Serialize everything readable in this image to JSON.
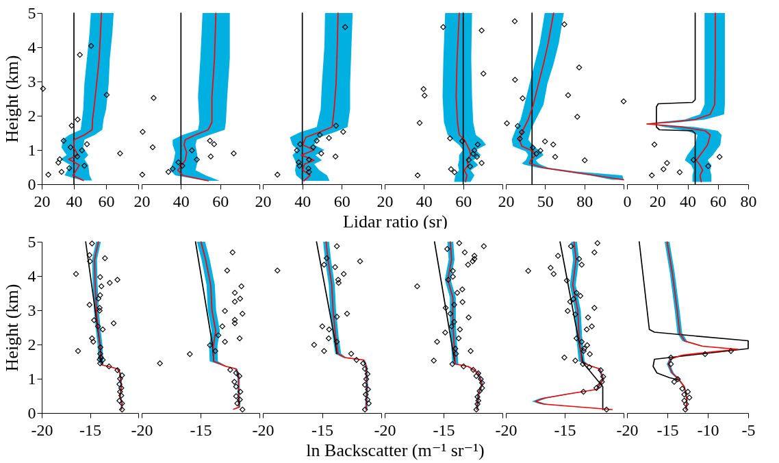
{
  "chart_data": [
    {
      "type": "line",
      "orientation": "horizontal",
      "ylabel": "Height (km)",
      "xlim": [
        20,
        80
      ],
      "ylim": [
        0,
        5
      ],
      "xticks": [
        20,
        40,
        60,
        {
          "value": 80,
          "label": null
        }
      ],
      "yticks": [
        0,
        1,
        2,
        3,
        4,
        5
      ],
      "series": [
        {
          "color": "#000000",
          "x": [
            0,
            5
          ],
          "values": [
            40,
            40
          ]
        },
        {
          "color": "#ff0000",
          "x": [
            0.11,
            0.26,
            0.56,
            0.73,
            0.85,
            1.07,
            1.3,
            1.44,
            1.59,
            1.89,
            2.19,
            2.93,
            3.67,
            4.41,
            5.0
          ],
          "values": [
            45.8,
            39.4,
            43.4,
            36.7,
            42.6,
            39.8,
            40.2,
            46.5,
            51.3,
            51.6,
            52.4,
            54.1,
            55.7,
            56.5,
            57.1
          ],
          "lower": [
            45,
            34.2,
            37.9,
            31.5,
            35.5,
            32.3,
            33.1,
            37,
            44.2,
            45,
            45.8,
            46.5,
            48.1,
            49.7,
            50.5
          ],
          "upper": [
            51.3,
            49.7,
            48.9,
            46.5,
            48.9,
            45.8,
            46.5,
            52.9,
            57.6,
            58.4,
            60,
            61.6,
            62.3,
            63.9,
            64.7
          ]
        },
        {
          "type": "scatter",
          "marker": "diamond",
          "color": "#000000",
          "x": [
            2.79,
            0.28,
            0.36,
            0.63,
            0.73,
            0.47,
            1.27,
            1.08,
            0.81,
            0.99,
            0.54,
            1.17,
            1.71,
            1.89,
            3.78,
            4.04,
            2.61,
            0.9
          ],
          "values": [
            20.8,
            24.1,
            32.3,
            30.3,
            31.2,
            37.1,
            33.6,
            37.9,
            42.1,
            45.0,
            46.5,
            48.1,
            38.6,
            42.3,
            43.7,
            50.7,
            60.4,
            68.7
          ]
        }
      ]
    },
    {
      "type": "line",
      "orientation": "horizontal",
      "tick_labels": "x",
      "xlim": [
        20,
        80
      ],
      "ylim": [
        0,
        5
      ],
      "xticks": [
        20,
        40,
        60,
        {
          "value": 80,
          "label": null
        }
      ],
      "yticks": [
        0,
        1,
        2,
        3,
        4,
        5
      ],
      "series": [
        {
          "color": "#000000",
          "x": [
            0,
            5
          ],
          "values": [
            40,
            40
          ]
        },
        {
          "color": "#ff0000",
          "x": [
            0.1,
            0.26,
            0.41,
            0.7,
            0.93,
            1.15,
            1.3,
            1.44,
            1.59,
            1.81,
            2.56,
            3.67,
            5.0
          ],
          "values": [
            53.9,
            40.9,
            38.4,
            42.2,
            42.9,
            41.6,
            42.2,
            47.4,
            53.9,
            55.8,
            55.8,
            57.1,
            57.8
          ],
          "lower": [
            52.6,
            37.1,
            34.5,
            36.4,
            37.1,
            35.8,
            35.8,
            40.9,
            48.7,
            49.4,
            48.7,
            49.9,
            51
          ],
          "upper": [
            59.7,
            52.6,
            47.4,
            48.7,
            48.1,
            47.4,
            48.1,
            54.5,
            62.3,
            62.9,
            63.6,
            64.9,
            64.9
          ]
        },
        {
          "type": "scatter",
          "marker": "diamond",
          "color": "#000000",
          "x": [
            1.53,
            0.28,
            2.52,
            1.08,
            0.36,
            0.45,
            0.64,
            0.54,
            0.99,
            0.72,
            1.27,
            1.17,
            0.81,
            0.9
          ],
          "values": [
            20.5,
            20.3,
            26.1,
            25.6,
            33.6,
            35.8,
            38.7,
            40.7,
            45.6,
            48.1,
            54.8,
            56.9,
            55.2,
            66.9
          ]
        }
      ]
    },
    {
      "type": "line",
      "orientation": "horizontal",
      "tick_labels": "x",
      "xlabel": "Lidar ratio (sr)",
      "xlim": [
        20,
        80
      ],
      "ylim": [
        0,
        5
      ],
      "xticks": [
        20,
        40,
        60,
        {
          "value": 80,
          "label": null
        }
      ],
      "yticks": [
        0,
        1,
        2,
        3,
        4,
        5
      ],
      "series": [
        {
          "color": "#000000",
          "x": [
            0,
            5
          ],
          "values": [
            40,
            40
          ]
        },
        {
          "color": "#ff0000",
          "x": [
            0.1,
            0.26,
            0.41,
            0.59,
            0.7,
            0.85,
            1.0,
            1.15,
            1.37,
            1.52,
            1.67,
            2.19,
            2.93,
            4.04,
            5.0
          ],
          "values": [
            40.8,
            44,
            40.2,
            41.1,
            46,
            39.5,
            46,
            40.2,
            41.8,
            48.6,
            55.1,
            56.1,
            57.1,
            57.7,
            58.1
          ],
          "lower": [
            40.2,
            36.9,
            36.3,
            36.9,
            36.3,
            35,
            37.6,
            35,
            33.7,
            38.9,
            47.3,
            49.3,
            49.9,
            51.2,
            51.5
          ],
          "upper": [
            53.8,
            52.5,
            48.6,
            46,
            49.9,
            46.7,
            51.2,
            46,
            48.6,
            56.4,
            62.9,
            64.2,
            64.2,
            64.9,
            65.5
          ]
        },
        {
          "type": "scatter",
          "marker": "diamond",
          "color": "#000000",
          "x": [
            0.28,
            0.99,
            1.17,
            0.64,
            0.54,
            0.46,
            0.36,
            0.72,
            1.08,
            1.27,
            1.44,
            0.9,
            1.35,
            0.81,
            1.71,
            1.53,
            4.59
          ],
          "values": [
            27.4,
            37.3,
            38.9,
            38.2,
            38.6,
            43.1,
            43.4,
            43.4,
            45.5,
            47.3,
            48.9,
            49.6,
            53.5,
            56.8,
            57.1,
            60.7,
            61.7
          ]
        }
      ]
    },
    {
      "type": "line",
      "orientation": "horizontal",
      "tick_labels": "x",
      "xlim": [
        20,
        80
      ],
      "ylim": [
        0,
        5
      ],
      "xticks": [
        20,
        40,
        60,
        {
          "value": 80,
          "label": null
        }
      ],
      "yticks": [
        0,
        1,
        2,
        3,
        4,
        5
      ],
      "series": [
        {
          "color": "#000000",
          "x": [
            0,
            5
          ],
          "values": [
            60,
            60
          ]
        },
        {
          "color": "#ff0000",
          "x": [
            0.07,
            0.26,
            0.41,
            0.56,
            0.7,
            0.85,
            1.0,
            1.15,
            1.3,
            1.44,
            1.81,
            2.56,
            3.67,
            5.0
          ],
          "values": [
            61.2,
            61.9,
            60.6,
            62.5,
            61.9,
            63.8,
            63.2,
            61.9,
            60.6,
            58,
            57.1,
            56.4,
            56.9,
            58
          ],
          "lower": [
            55.4,
            56,
            57.9,
            57.3,
            57.9,
            57.9,
            59.9,
            57.9,
            54.7,
            52.1,
            50.2,
            49.5,
            49.9,
            50.8
          ],
          "upper": [
            63.8,
            65.7,
            63.8,
            67.7,
            65.1,
            69,
            66.4,
            71.6,
            69.6,
            66.4,
            65.1,
            64.5,
            64.1,
            64.5
          ]
        },
        {
          "type": "scatter",
          "marker": "diamond",
          "color": "#000000",
          "x": [
            0.26,
            0.44,
            0.35,
            0.52,
            0.71,
            0.62,
            0.8,
            0.89,
            0.99,
            1.16,
            1.26,
            1.34,
            1.79,
            2.59,
            2.78,
            3.23,
            4.59,
            4.49
          ],
          "values": [
            36.8,
            53.8,
            55.6,
            63.5,
            62.9,
            69.4,
            67,
            65.1,
            65.7,
            67.4,
            59.5,
            53.3,
            37.8,
            40.3,
            39.8,
            70.3,
            49.8,
            69.4
          ]
        }
      ]
    },
    {
      "type": "line",
      "orientation": "horizontal",
      "tick_labels": "x",
      "xlim": [
        20,
        110
      ],
      "ylim": [
        0,
        5
      ],
      "xticks": [
        20,
        50,
        80,
        {
          "value": 110,
          "label": null
        }
      ],
      "yticks": [
        0,
        1,
        2,
        3,
        4,
        5
      ],
      "series": [
        {
          "color": "#000000",
          "x": [
            0,
            5
          ],
          "values": [
            40,
            40
          ]
        },
        {
          "color": "#ff0000",
          "x": [
            0.13,
            0.26,
            0.37,
            0.48,
            0.57,
            0.61,
            0.7,
            0.85,
            0.96,
            1.11,
            1.3,
            1.59,
            1.89,
            2.33,
            2.93,
            3.52,
            4.11,
            5.0
          ],
          "values": [
            110,
            87.7,
            68.2,
            48.8,
            41,
            38.1,
            39,
            42.6,
            41,
            32.2,
            30.3,
            33.2,
            37.1,
            41,
            44.9,
            48.8,
            52.3,
            56.5
          ],
          "lower": [
            101.3,
            83.8,
            64.3,
            44.9,
            34.2,
            32.2,
            35.2,
            37.1,
            35.2,
            25.4,
            24.5,
            27.4,
            31.3,
            34.2,
            38.1,
            42,
            45.9,
            49.7
          ],
          "upper": [
            110,
            109,
            74,
            52.7,
            46.8,
            44.9,
            42.9,
            48.8,
            46.8,
            41,
            37.1,
            39.1,
            42.9,
            48.8,
            51.7,
            56.5,
            60.4,
            64.3
          ]
        },
        {
          "type": "scatter",
          "marker": "diamond",
          "color": "#000000",
          "x": [
            1.78,
            4.76,
            3.05,
            2.51,
            1.7,
            1.52,
            1.33,
            1.07,
            0.89,
            0.98,
            1.25,
            1.16,
            0.8,
            0.7,
            1.97,
            2.6,
            3.41,
            4.67,
            2.42
          ],
          "values": [
            20.8,
            26.8,
            27,
            32.8,
            29.1,
            32.2,
            30.7,
            40.6,
            43.3,
            46.4,
            49.9,
            56.2,
            57.7,
            80.3,
            74.6,
            67.6,
            76,
            64.7,
            110
          ]
        }
      ]
    },
    {
      "type": "line",
      "orientation": "horizontal",
      "tick_labels": "x",
      "xlim": [
        0,
        80
      ],
      "ylim": [
        0,
        5
      ],
      "xticks": [
        0,
        20,
        40,
        60,
        80
      ],
      "yticks": [
        0,
        1,
        2,
        3,
        4,
        5
      ],
      "series": [
        {
          "color": "#000000",
          "x": [
            5,
            2.47,
            2.39,
            2.35,
            2.26,
            1.67,
            1.59,
            1.56,
            1.48,
            0
          ],
          "values": [
            45,
            45,
            43.2,
            20.6,
            19.4,
            19.4,
            21.4,
            43.2,
            45,
            45
          ]
        },
        {
          "color": "#ff0000",
          "x": [
            0.07,
            0.26,
            0.41,
            0.56,
            0.7,
            0.85,
            1.15,
            1.44,
            1.56,
            1.67,
            1.73,
            1.76,
            1.81,
            1.89,
            2.04,
            2.33,
            3.67,
            5.0
          ],
          "values": [
            49,
            48.2,
            49.9,
            48.2,
            45.7,
            48.2,
            53.2,
            54.9,
            51.6,
            36.5,
            21.4,
            13.1,
            28.1,
            44.9,
            54.9,
            57.9,
            58.3,
            58.3
          ],
          "lower": [
            43.2,
            43.2,
            44,
            42.4,
            38.2,
            39.8,
            44.9,
            46.5,
            39.8,
            24.8,
            18.9,
            12.2,
            19.8,
            38.2,
            48.2,
            51.2,
            51.2,
            51.2
          ],
          "upper": [
            55.7,
            55.7,
            54.9,
            55.7,
            53.2,
            56.6,
            61.6,
            62.4,
            59.9,
            44.9,
            26.4,
            14.7,
            34.8,
            51.6,
            64.1,
            64.6,
            64.6,
            64.6
          ]
        },
        {
          "type": "scatter",
          "marker": "diamond",
          "color": "#000000",
          "x": [
            0.26,
            0.44,
            0.62,
            0.35,
            1.16,
            0.71,
            0.53,
            0.8
          ],
          "values": [
            16.4,
            24.1,
            26.4,
            34.8,
            18.1,
            43.9,
            53.6,
            61.1
          ]
        }
      ]
    },
    {
      "type": "line",
      "orientation": "horizontal",
      "ylabel": "Height (km)",
      "xlim": [
        -20,
        -10
      ],
      "ylim": [
        0,
        5
      ],
      "xticks": [
        -20,
        -15,
        {
          "value": -10,
          "label": null
        }
      ],
      "yticks": [
        0,
        1,
        2,
        3,
        4,
        5
      ],
      "series": [
        {
          "color": "#000000",
          "x": [
            1.51,
            1.95,
            5.0
          ],
          "values": [
            -13.87,
            -13.95,
            -15.45
          ]
        },
        {
          "color": "#ff0000",
          "x": [
            0.1,
            0.28,
            0.47,
            0.77,
            1.17,
            1.29,
            1.36,
            1.4,
            1.51,
            1.95,
            2.4,
            2.99,
            3.37,
            3.74,
            4.48,
            5.0
          ],
          "values": [
            -11.76,
            -11.68,
            -11.89,
            -11.76,
            -11.89,
            -12.16,
            -13.08,
            -13.74,
            -13.87,
            -13.95,
            -14.13,
            -14.34,
            -14.39,
            -14.47,
            -14.53,
            -14.13
          ],
          "lower": [
            -11.86,
            -11.78,
            -11.99,
            -11.86,
            -11.99,
            -12.26,
            -13.18,
            -13.89,
            -14.12,
            -14.2,
            -14.38,
            -14.59,
            -14.64,
            -14.72,
            -14.78,
            -14.38
          ],
          "upper": [
            -11.66,
            -11.58,
            -11.79,
            -11.66,
            -11.79,
            -12.06,
            -12.98,
            -13.59,
            -13.62,
            -13.7,
            -13.88,
            -14.09,
            -14.14,
            -14.22,
            -14.28,
            -13.88
          ]
        },
        {
          "type": "scatter",
          "marker": "diamond",
          "color": "#000000",
          "x": [
            4.95,
            4.61,
            4.43,
            4.52,
            4.06,
            3.97,
            3.7,
            3.8,
            3.89,
            3.44,
            3.34,
            3.16,
            3.07,
            2.99,
            2.71,
            2.53,
            2.44,
            2.62,
            2.18,
            2.08,
            1.81,
            1.92,
            1.73,
            1.62,
            1.56,
            1.55,
            1.45,
            1.36,
            1.25,
            1.1,
            1.0,
            0.84,
            0.73,
            0.62,
            0.51,
            0.36,
            0.28,
            0.1
          ],
          "values": [
            -14.79,
            -15.05,
            -15.0,
            -13.45,
            -16.45,
            -13.95,
            -13.82,
            -12.95,
            -12.16,
            -13.95,
            -14.13,
            -15.05,
            -14.0,
            -14.0,
            -14.58,
            -14.18,
            -13.68,
            -12.55,
            -14.79,
            -14.66,
            -16.24,
            -13.92,
            -13.95,
            -13.87,
            -14.0,
            -13.68,
            -13.95,
            -13.03,
            -12.16,
            -11.68,
            -11.89,
            -11.95,
            -11.76,
            -11.89,
            -11.76,
            -11.95,
            -11.68,
            -11.68
          ]
        }
      ]
    },
    {
      "type": "line",
      "orientation": "horizontal",
      "tick_labels": "x",
      "xlim": [
        -20,
        -10
      ],
      "ylim": [
        0,
        5
      ],
      "xticks": [
        -20,
        -15,
        {
          "value": -10,
          "label": null
        }
      ],
      "yticks": [
        0,
        1,
        2,
        3,
        4,
        5
      ],
      "series": [
        {
          "color": "#000000",
          "x": [
            1.51,
            1.95,
            5.0
          ],
          "values": [
            -13.88,
            -13.97,
            -15.43
          ]
        },
        {
          "color": "#ff0000",
          "x": [
            0.11,
            0.17,
            0.62,
            1.06,
            1.29,
            1.36,
            1.51,
            1.95,
            2.4,
            2.99,
            3.74,
            4.48,
            5.0
          ],
          "values": [
            -12.2,
            -11.72,
            -11.77,
            -11.77,
            -11.98,
            -12.84,
            -13.88,
            -13.92,
            -13.71,
            -14.03,
            -14.14,
            -14.57,
            -14.96
          ],
          "lower": [
            -12.3,
            -11.82,
            -11.87,
            -11.87,
            -12.08,
            -12.94,
            -14.23,
            -14.27,
            -14.06,
            -14.38,
            -14.49,
            -14.92,
            -15.31
          ],
          "upper": [
            -12.1,
            -11.62,
            -11.67,
            -11.67,
            -11.88,
            -12.74,
            -13.53,
            -13.57,
            -13.36,
            -13.68,
            -13.79,
            -14.22,
            -14.61
          ]
        },
        {
          "type": "scatter",
          "marker": "diamond",
          "color": "#000000",
          "x": [
            1.45,
            1.72,
            1.98,
            1.81,
            2.27,
            2.53,
            2.08,
            2.98,
            4.16,
            4.69,
            3.51,
            3.25,
            3.34,
            3.7,
            2.9,
            2.72,
            2.62,
            2.18,
            1.26,
            1.17,
            1.08,
            0.91,
            0.77,
            0.62,
            0.49,
            0.39,
            0.28,
            0.1
          ],
          "values": [
            -18.45,
            -15.91,
            -14.2,
            -13.75,
            -13.49,
            -13.15,
            -12.93,
            -12.93,
            -12.74,
            -12.28,
            -12.09,
            -12.09,
            -11.64,
            -11.53,
            -11.44,
            -12.09,
            -12.09,
            -11.68,
            -12.48,
            -11.98,
            -11.7,
            -12.13,
            -11.98,
            -11.62,
            -11.98,
            -11.66,
            -11.88,
            -11.44
          ]
        }
      ]
    },
    {
      "type": "line",
      "orientation": "horizontal",
      "tick_labels": "x",
      "xlabel": "ln Backscatter (m⁻¹ sr⁻¹)",
      "xlim": [
        -20,
        -10
      ],
      "ylim": [
        0,
        5
      ],
      "xticks": [
        -20,
        -15,
        {
          "value": -10,
          "label": null
        }
      ],
      "yticks": [
        0,
        1,
        2,
        3,
        4,
        5
      ],
      "series": [
        {
          "color": "#000000",
          "x": [
            1.73,
            2.1,
            5.0
          ],
          "values": [
            -13.75,
            -13.9,
            -15.47
          ]
        },
        {
          "color": "#ff0000",
          "x": [
            0.1,
            0.77,
            1.36,
            1.55,
            1.62,
            1.73,
            2.25,
            2.99,
            3.74,
            4.48,
            5.0
          ],
          "values": [
            -11.27,
            -11.21,
            -11.27,
            -11.49,
            -13.1,
            -13.64,
            -13.86,
            -14.07,
            -14.18,
            -14.5,
            -14.66
          ],
          "lower": [
            -11.37,
            -11.31,
            -11.37,
            -11.59,
            -13.25,
            -13.89,
            -14.11,
            -14.32,
            -14.43,
            -14.75,
            -14.91
          ],
          "upper": [
            -11.17,
            -11.11,
            -11.17,
            -11.39,
            -12.95,
            -13.39,
            -13.61,
            -13.82,
            -13.93,
            -14.25,
            -14.41
          ]
        },
        {
          "type": "scatter",
          "marker": "diamond",
          "color": "#000000",
          "x": [
            4.16,
            4.87,
            4.52,
            4.33,
            4.26,
            4.06,
            3.89,
            3.8,
            4.43,
            2.81,
            2.9,
            2.53,
            2.44,
            2.18,
            2.08,
            1.99,
            1.81,
            1.73,
            1.55,
            1.45,
            1.29,
            1.14,
            0.99,
            0.82,
            0.69,
            0.54,
            0.39,
            0.28,
            0.1
          ],
          "values": [
            -18.77,
            -13.75,
            -14.61,
            -14.83,
            -13.9,
            -13.17,
            -13.64,
            -13.6,
            -11.79,
            -13.75,
            -12.89,
            -14.98,
            -14.4,
            -14.44,
            -13.75,
            -15.67,
            -14.83,
            -12.54,
            -12.09,
            -11.53,
            -11.38,
            -11.16,
            -11.27,
            -11.38,
            -11.12,
            -11.31,
            -11.16,
            -11.06,
            -11.38
          ]
        }
      ]
    },
    {
      "type": "line",
      "orientation": "horizontal",
      "tick_labels": "x",
      "xlim": [
        -20,
        -10
      ],
      "ylim": [
        0,
        5
      ],
      "xticks": [
        -20,
        -15,
        {
          "value": -10,
          "label": null
        }
      ],
      "yticks": [
        0,
        1,
        2,
        3,
        4,
        5
      ],
      "series": [
        {
          "color": "#000000",
          "x": [
            1.51,
            5.0
          ],
          "values": [
            -14.06,
            -15.77
          ]
        },
        {
          "color": "#ff0000",
          "x": [
            0.1,
            0.54,
            0.84,
            1.17,
            1.36,
            1.43,
            1.95,
            2.62,
            3.37,
            3.89,
            4.48,
            5.0
          ],
          "values": [
            -12.16,
            -12.05,
            -11.73,
            -12.05,
            -12.92,
            -14.0,
            -14.1,
            -14.21,
            -14.21,
            -14.64,
            -14.32,
            -14.43
          ],
          "lower": [
            -12.26,
            -12.15,
            -11.83,
            -12.15,
            -13.02,
            -14.25,
            -14.35,
            -14.46,
            -14.46,
            -14.89,
            -14.57,
            -14.68
          ],
          "upper": [
            -12.06,
            -11.95,
            -11.63,
            -11.95,
            -12.82,
            -13.75,
            -13.85,
            -13.96,
            -13.96,
            -14.39,
            -14.07,
            -14.18
          ]
        },
        {
          "type": "scatter",
          "marker": "diamond",
          "color": "#000000",
          "x": [
            4.79,
            4.96,
            4.87,
            4.69,
            4.59,
            4.5,
            4.43,
            4.33,
            4.15,
            3.98,
            3.89,
            3.7,
            3.61,
            3.51,
            3.24,
            3.16,
            3.07,
            2.9,
            2.79,
            2.66,
            2.53,
            2.44,
            2.35,
            2.18,
            2.08,
            1.88,
            1.73,
            1.81,
            1.53,
            1.43,
            1.36,
            1.26,
            1.16,
            1.08,
            0.99,
            0.88,
            0.73,
            0.64,
            0.47,
            0.36,
            0.26,
            0.1
          ],
          "values": [
            -14.69,
            -13.67,
            -11.58,
            -13.2,
            -12.38,
            -12.38,
            -12.53,
            -12.92,
            -14.21,
            -14.21,
            -14.6,
            -17.24,
            -13.41,
            -13.84,
            -13.39,
            -14.1,
            -14.82,
            -14.43,
            -12.87,
            -14.1,
            -14.32,
            -13.61,
            -14.86,
            -13.72,
            -15.55,
            -14.0,
            -13.95,
            -12.7,
            -15.83,
            -14.25,
            -13.3,
            -12.48,
            -12.05,
            -12.22,
            -11.84,
            -11.73,
            -11.73,
            -11.94,
            -12.12,
            -12.05,
            -12.12,
            -12.22
          ]
        }
      ]
    },
    {
      "type": "line",
      "orientation": "horizontal",
      "tick_labels": "x",
      "xlim": [
        -20,
        -10
      ],
      "ylim": [
        0,
        5
      ],
      "xticks": [
        -20,
        -15,
        {
          "value": -10,
          "label": null
        }
      ],
      "yticks": [
        0,
        1,
        2,
        3,
        4,
        5
      ],
      "series": [
        {
          "color": "#000000",
          "x": [
            0.1,
            0.77,
            1.47,
            5.0
          ],
          "values": [
            -11.77,
            -11.77,
            -13.46,
            -15.4
          ]
        },
        {
          "color": "#ff0000",
          "x": [
            0.1,
            0.2,
            0.26,
            0.34,
            0.43,
            0.56,
            0.69,
            0.99,
            1.29,
            1.4,
            1.51,
            2.25,
            2.99,
            3.74,
            4.48,
            5.0
          ],
          "values": [
            -10.97,
            -14.64,
            -16.8,
            -17.49,
            -16.8,
            -14.64,
            -12.27,
            -11.73,
            -12.05,
            -13.02,
            -13.56,
            -13.78,
            -13.89,
            -14.32,
            -14.04,
            -14.21
          ],
          "lower": [
            -11.07,
            -14.84,
            -17.1,
            -17.79,
            -17.1,
            -14.84,
            -12.37,
            -11.83,
            -12.15,
            -13.12,
            -13.81,
            -14.03,
            -14.14,
            -14.57,
            -14.29,
            -14.46
          ],
          "upper": [
            -10.87,
            -14.44,
            -16.5,
            -17.29,
            -16.5,
            -14.44,
            -12.17,
            -11.63,
            -11.95,
            -12.92,
            -13.31,
            -13.53,
            -13.64,
            -14.07,
            -13.79,
            -13.96
          ]
        },
        {
          "type": "scatter",
          "marker": "diamond",
          "color": "#000000",
          "x": [
            4.96,
            4.87,
            4.69,
            4.59,
            4.15,
            4.24,
            4.06,
            4.5,
            4.33,
            3.87,
            3.51,
            3.42,
            3.25,
            3.33,
            2.98,
            2.88,
            3.07,
            2.79,
            2.53,
            2.44,
            2.18,
            2.08,
            1.98,
            1.88,
            1.81,
            1.72,
            1.62,
            1.53,
            1.43,
            1.34,
            1.25,
            1.06,
            0.91,
            0.8,
            0.73,
            0.62,
            0.1
          ],
          "values": [
            -12.22,
            -14.47,
            -12.48,
            -15.57,
            -18.1,
            -16.2,
            -15.94,
            -13.78,
            -13.56,
            -14.82,
            -14.0,
            -13.67,
            -14.54,
            -14.25,
            -14.75,
            -14.1,
            -12.48,
            -13.02,
            -12.7,
            -13.13,
            -14.0,
            -13.56,
            -13.09,
            -13.35,
            -13.39,
            -12.87,
            -15.03,
            -14.1,
            -13.46,
            -12.91,
            -11.94,
            -11.73,
            -11.84,
            -12.05,
            -12.31,
            -13.41,
            -11.45
          ]
        }
      ]
    },
    {
      "type": "line",
      "orientation": "horizontal",
      "tick_labels": "x",
      "xlim": [
        -20,
        -5
      ],
      "ylim": [
        0,
        5
      ],
      "xticks": [
        -20,
        -15,
        -10,
        -5
      ],
      "yticks": [
        0,
        1,
        2,
        3,
        4,
        5
      ],
      "series": [
        {
          "color": "#000000",
          "x": [
            5.0,
            2.44,
            2.36,
            2.25,
            2.11,
            1.88,
            1.62,
            1.57,
            1.36,
            1.17,
            1.03,
            0.97
          ],
          "values": [
            -18.49,
            -17.24,
            -16.61,
            -11.59,
            -5,
            -5,
            -14.73,
            -16.61,
            -16.77,
            -16.3,
            -14.73,
            -13.63
          ]
        },
        {
          "color": "#ff0000",
          "x": [
            0.1,
            0.39,
            0.77,
            0.99,
            1.17,
            1.43,
            1.58,
            1.69,
            1.81,
            1.86,
            1.95,
            2.1,
            2.33,
            2.99,
            4.11,
            5.0
          ],
          "values": [
            -12.69,
            -12.59,
            -12.91,
            -13.63,
            -14.41,
            -14.89,
            -14.57,
            -13.16,
            -8.45,
            -6.26,
            -10.65,
            -12.85,
            -13.47,
            -13.79,
            -14.41,
            -15.04
          ],
          "lower": [
            -12.79,
            -12.69,
            -13.01,
            -13.78,
            -14.61,
            -15.09,
            -14.77,
            -13.36,
            -8.55,
            -6.36,
            -10.85,
            -13.15,
            -13.77,
            -14.09,
            -14.71,
            -15.34
          ],
          "upper": [
            -12.59,
            -12.49,
            -12.81,
            -13.48,
            -14.21,
            -14.69,
            -14.37,
            -12.96,
            -8.35,
            -6.16,
            -10.45,
            -12.55,
            -13.17,
            -13.49,
            -14.11,
            -14.74
          ]
        },
        {
          "type": "scatter",
          "marker": "diamond",
          "color": "#000000",
          "x": [
            1.62,
            1.43,
            1.72,
            1.81,
            0.91,
            0.99,
            0.71,
            0.54,
            0.62,
            0.45,
            0.36,
            0.26,
            0.1
          ],
          "values": [
            -14.57,
            -14.57,
            -10.34,
            -7.14,
            -14.16,
            -13.72,
            -13.16,
            -12.91,
            -12.47,
            -12.28,
            -12.91,
            -12.69,
            -12.78
          ]
        }
      ]
    }
  ]
}
